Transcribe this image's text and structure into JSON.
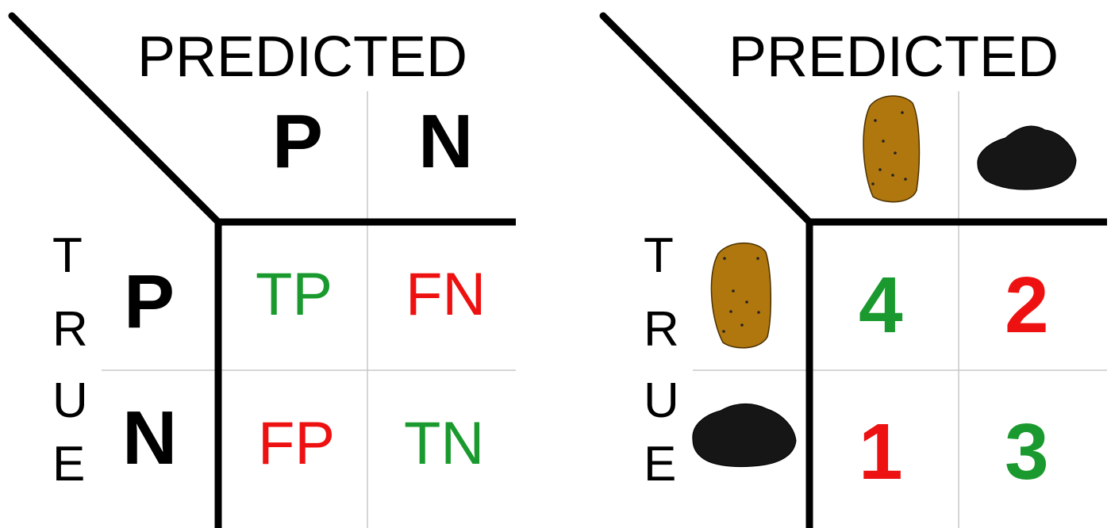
{
  "colors": {
    "positive_text": "#1a9a2e",
    "negative_text": "#ee1111",
    "rock": "#161616",
    "potato": "#b0770f"
  },
  "left": {
    "predicted": "PREDICTED",
    "true_letters": [
      "T",
      "R",
      "U",
      "E"
    ],
    "col_headers": [
      "P",
      "N"
    ],
    "row_headers": [
      "P",
      "N"
    ],
    "cells": [
      [
        "TP",
        "FN"
      ],
      [
        "FP",
        "TN"
      ]
    ]
  },
  "right": {
    "predicted": "PREDICTED",
    "true_letters": [
      "T",
      "R",
      "U",
      "E"
    ],
    "col_header_icons": [
      "potato-icon",
      "rock-icon"
    ],
    "row_header_icons": [
      "potato-icon",
      "rock-icon"
    ],
    "counts": [
      [
        "4",
        "2"
      ],
      [
        "1",
        "3"
      ]
    ]
  }
}
